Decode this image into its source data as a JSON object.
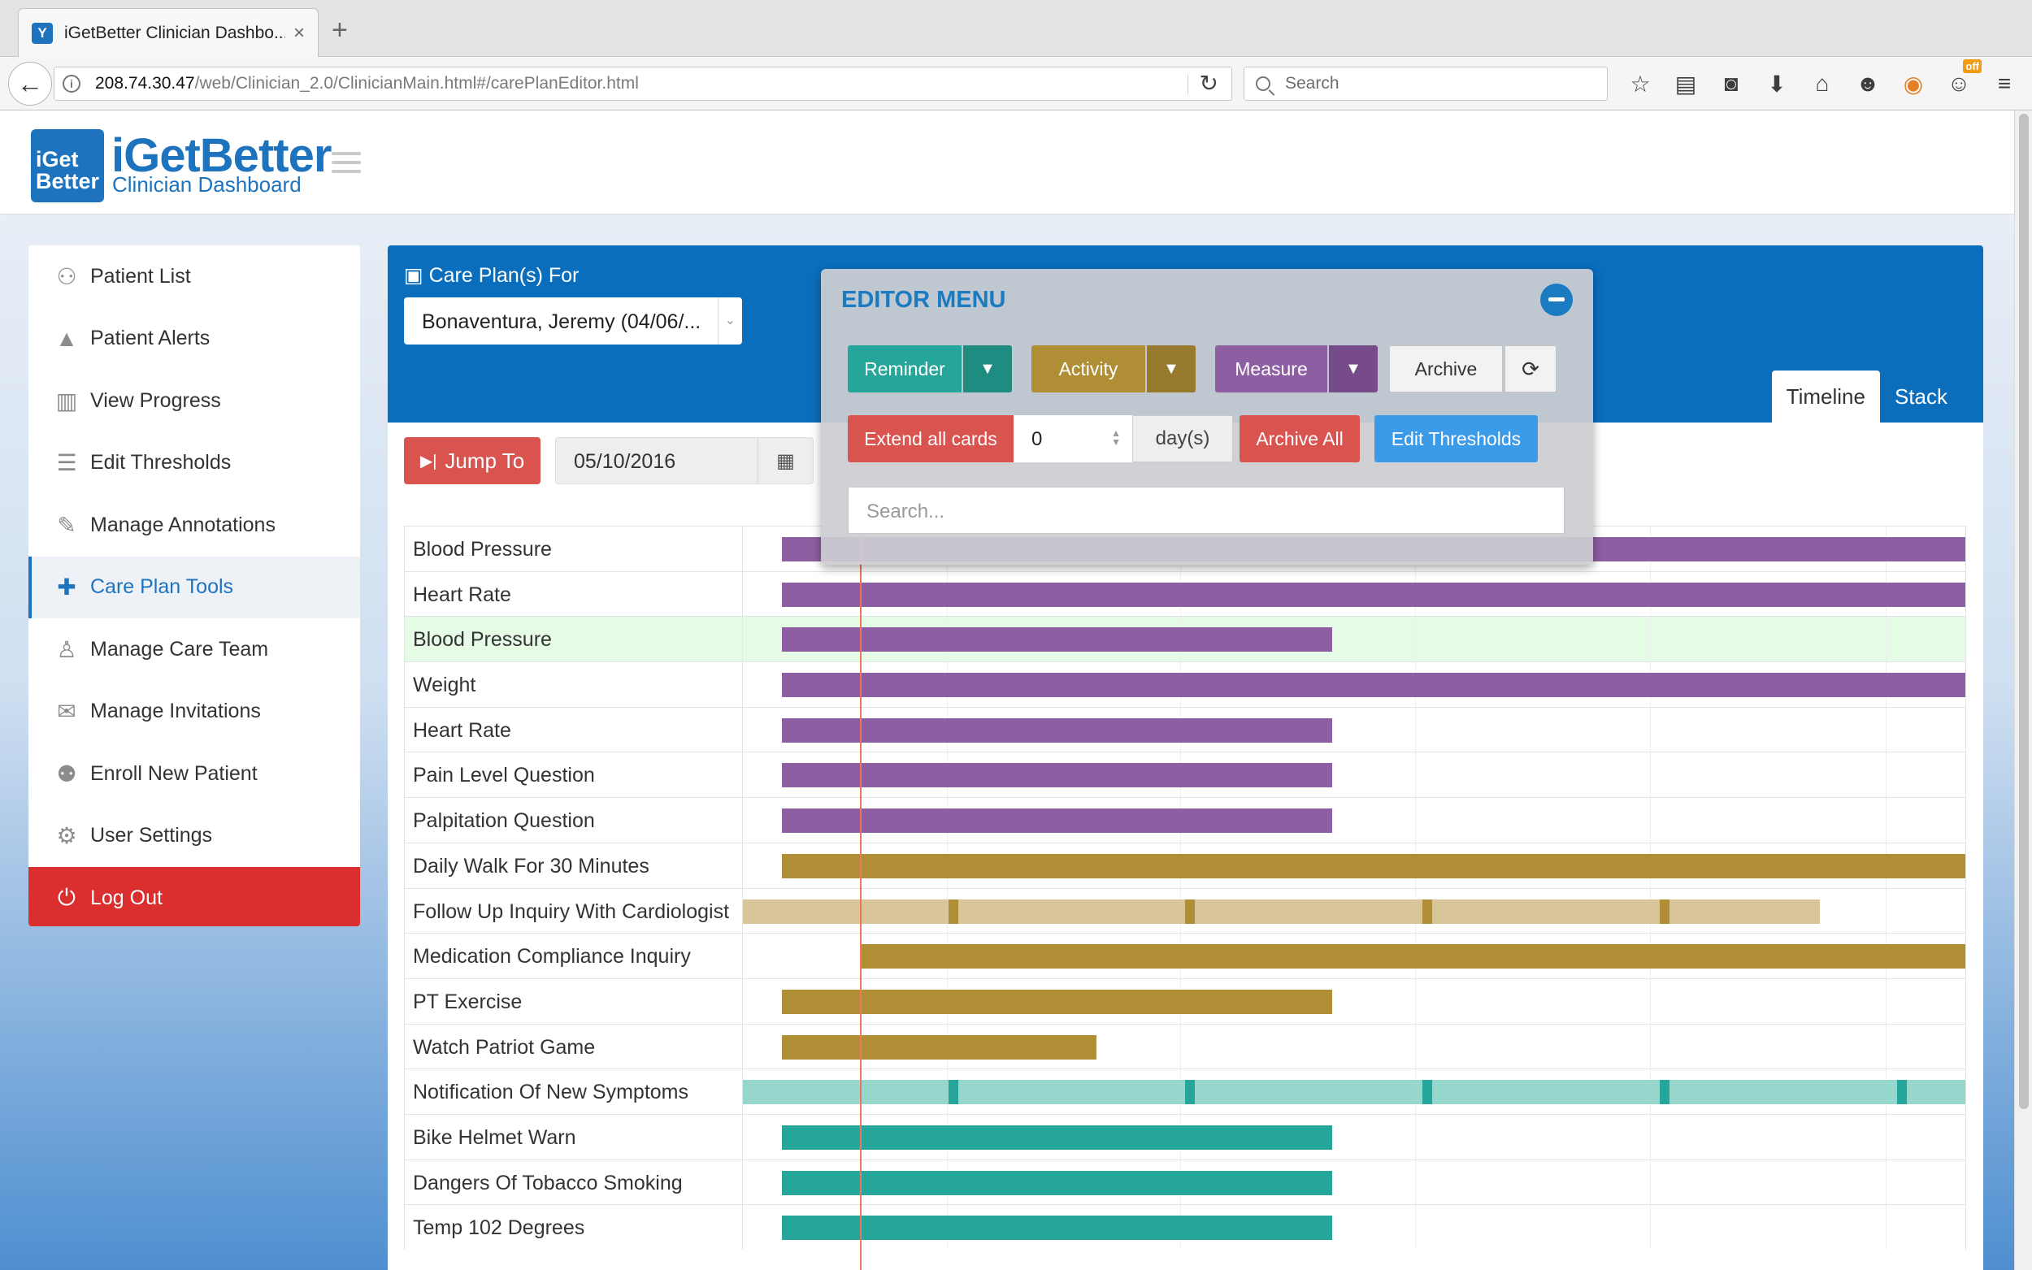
{
  "browser": {
    "tab_title": "iGetBetter Clinician Dashbo...",
    "url_host": "208.74.30.47",
    "url_path": "/web/Clinician_2.0/ClinicianMain.html#/carePlanEditor.html",
    "search_placeholder": "Search",
    "addon_badge": "off"
  },
  "app": {
    "logo_mark_line1": "iGet",
    "logo_mark_line2": "Better",
    "name": "iGetBetter",
    "subtitle": "Clinician Dashboard"
  },
  "sidebar": {
    "items": [
      {
        "label": "Patient List",
        "icon": "user-icon"
      },
      {
        "label": "Patient Alerts",
        "icon": "warning-icon"
      },
      {
        "label": "View Progress",
        "icon": "bar-chart-icon"
      },
      {
        "label": "Edit Thresholds",
        "icon": "list-icon"
      },
      {
        "label": "Manage Annotations",
        "icon": "edit-icon"
      },
      {
        "label": "Care Plan Tools",
        "icon": "medkit-icon"
      },
      {
        "label": "Manage Care Team",
        "icon": "person-icon"
      },
      {
        "label": "Manage Invitations",
        "icon": "envelope-icon"
      },
      {
        "label": "Enroll New Patient",
        "icon": "user-plus-icon"
      },
      {
        "label": "User Settings",
        "icon": "gear-icon"
      },
      {
        "label": "Log Out",
        "icon": "power-icon"
      }
    ],
    "active_index": 5
  },
  "care_plan": {
    "label": "Care Plan(s) For",
    "patient": "Bonaventura, Jeremy (04/06/...",
    "tabs": [
      "Timeline",
      "Stack"
    ],
    "active_tab": "Timeline"
  },
  "toolbar": {
    "jump_label": "Jump To",
    "date_value": "05/10/2016"
  },
  "editor": {
    "title": "EDITOR MENU",
    "reminder": "Reminder",
    "activity": "Activity",
    "measure": "Measure",
    "archive": "Archive",
    "extend_all": "Extend all cards",
    "extend_days_value": "0",
    "days_unit": "day(s)",
    "archive_all": "Archive All",
    "edit_thresholds": "Edit Thresholds",
    "search_placeholder": "Search..."
  },
  "colors": {
    "measure": "#8e5ea2",
    "activity": "#b08e35",
    "reminder": "#26a69a",
    "brand": "#1e73be",
    "danger": "#d9534f",
    "today_marker": "#f0755a"
  },
  "timeline": {
    "rows": [
      {
        "label": "Blood Pressure",
        "type": "measure",
        "start": 0.032,
        "end": 1.0
      },
      {
        "label": "Heart Rate",
        "type": "measure",
        "start": 0.032,
        "end": 1.0
      },
      {
        "label": "Blood Pressure",
        "type": "measure",
        "start": 0.032,
        "end": 0.482,
        "highlighted": true
      },
      {
        "label": "Weight",
        "type": "measure",
        "start": 0.032,
        "end": 1.0
      },
      {
        "label": "Heart Rate",
        "type": "measure",
        "start": 0.032,
        "end": 0.482
      },
      {
        "label": "Pain Level Question",
        "type": "measure",
        "start": 0.032,
        "end": 0.482
      },
      {
        "label": "Palpitation Question",
        "type": "measure",
        "start": 0.032,
        "end": 0.482
      },
      {
        "label": "Daily Walk For 30 Minutes",
        "type": "activity",
        "start": 0.032,
        "end": 1.0
      },
      {
        "label": "Follow Up Inquiry With Cardiologist",
        "type": "activity-recurring",
        "start": 0.0,
        "end": 0.881,
        "ticks": [
          0.172,
          0.366,
          0.56,
          0.754
        ]
      },
      {
        "label": "Medication Compliance Inquiry",
        "type": "activity",
        "start": 0.096,
        "end": 1.0
      },
      {
        "label": "PT Exercise",
        "type": "activity",
        "start": 0.032,
        "end": 0.482
      },
      {
        "label": "Watch Patriot Game",
        "type": "activity",
        "start": 0.032,
        "end": 0.289
      },
      {
        "label": "Notification Of New Symptoms",
        "type": "reminder-recurring",
        "start": 0.0,
        "end": 1.0,
        "ticks": [
          0.172,
          0.366,
          0.56,
          0.754,
          0.948
        ]
      },
      {
        "label": "Bike Helmet Warn",
        "type": "reminder",
        "start": 0.032,
        "end": 0.482
      },
      {
        "label": "Dangers Of Tobacco Smoking",
        "type": "reminder",
        "start": 0.032,
        "end": 0.482
      },
      {
        "label": "Temp 102 Degrees",
        "type": "reminder",
        "start": 0.032,
        "end": 0.482
      }
    ]
  }
}
